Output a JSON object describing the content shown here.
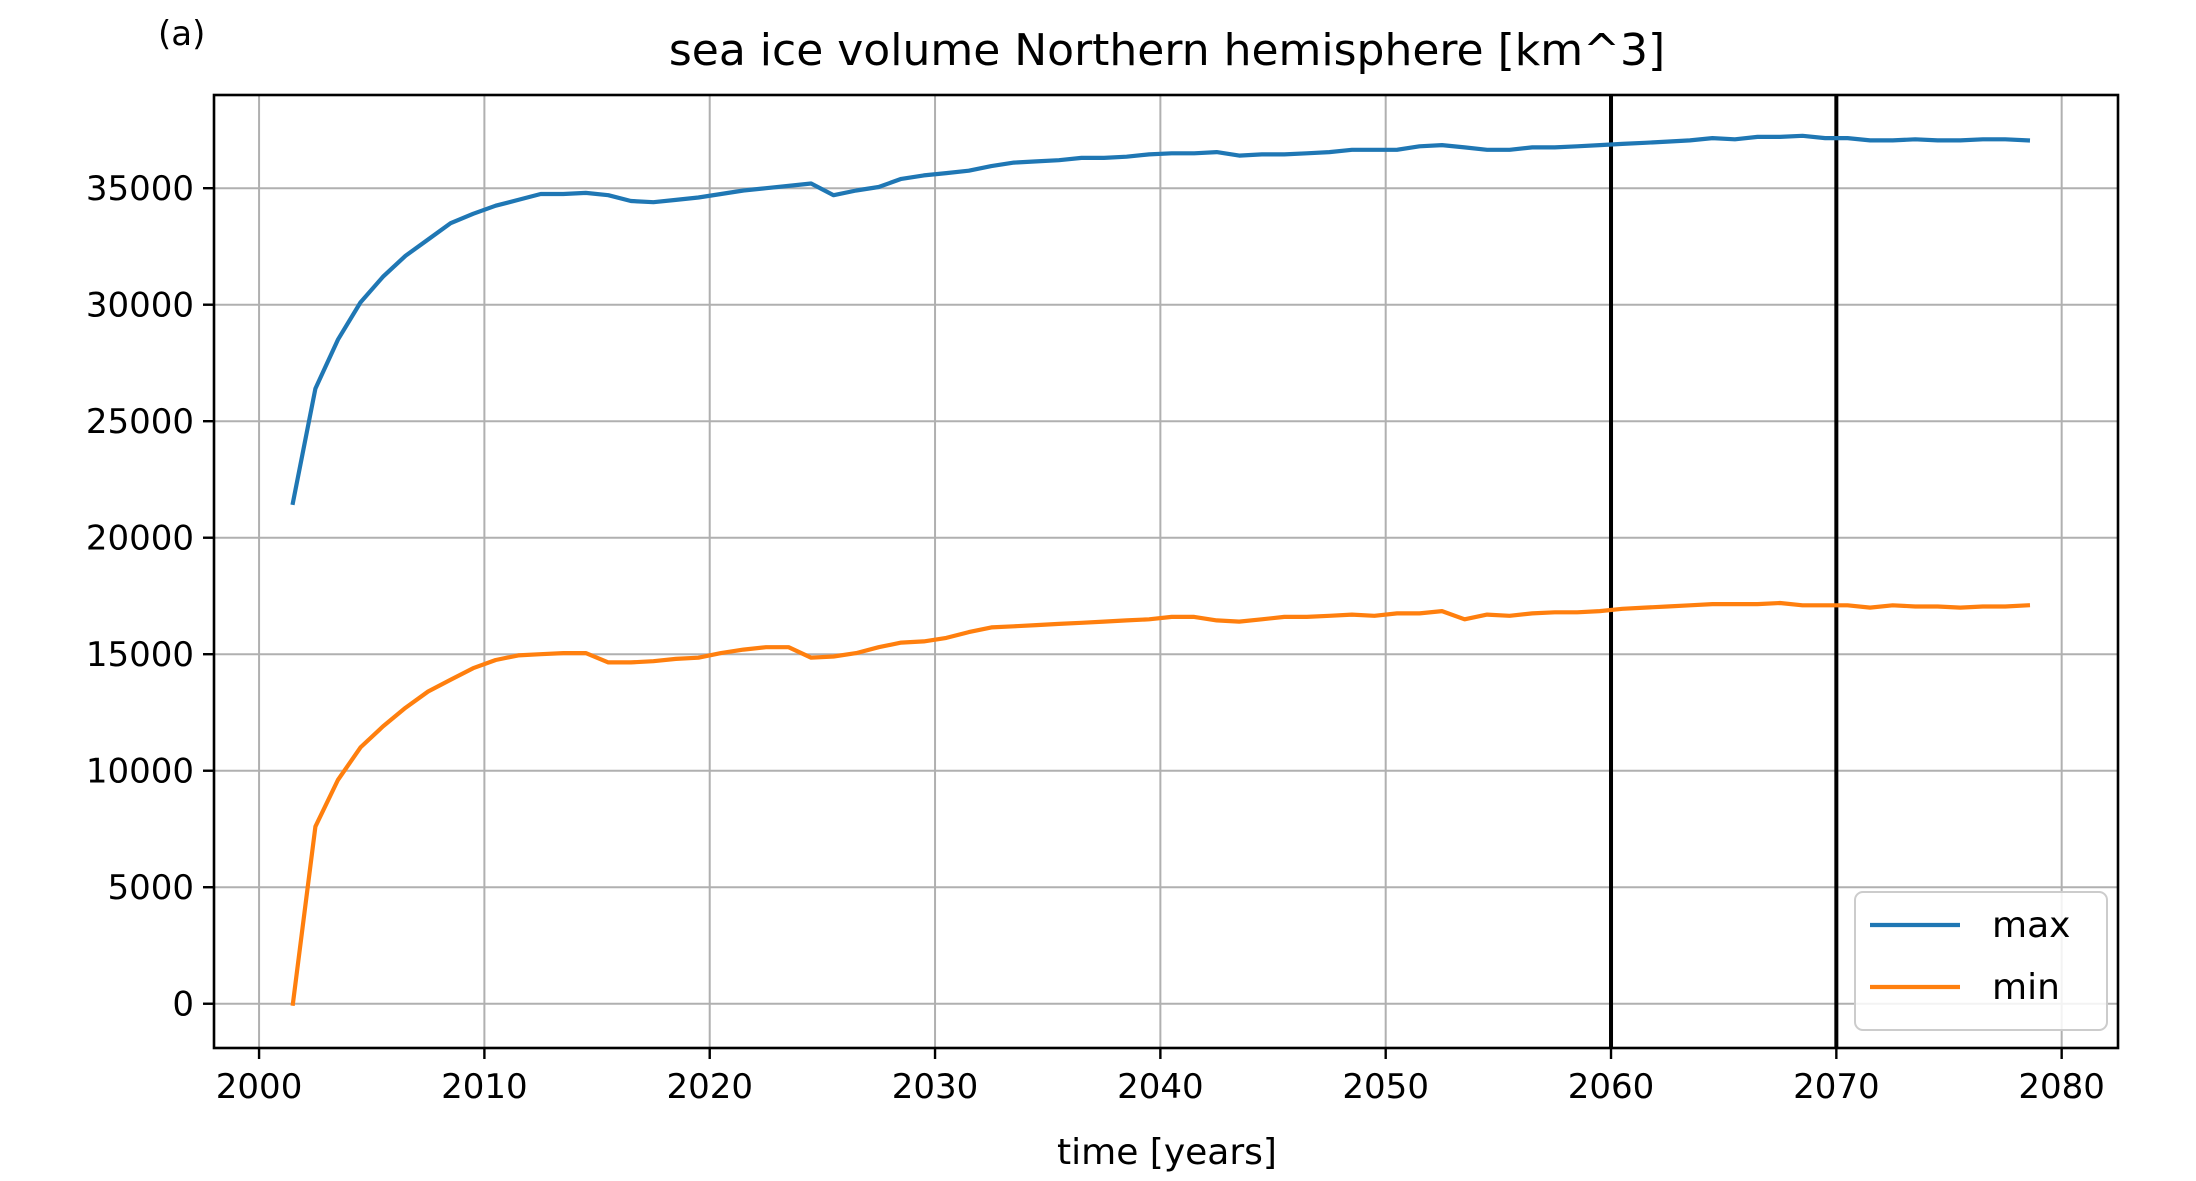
{
  "panel_label": "(a)",
  "chart_data": {
    "type": "line",
    "title": "sea ice volume Northern hemisphere [km^3]",
    "xlabel": "time [years]",
    "ylabel": "",
    "xlim": [
      1998,
      2082.5
    ],
    "ylim": [
      -1900,
      39000
    ],
    "xticks": [
      2000,
      2010,
      2020,
      2030,
      2040,
      2050,
      2060,
      2070,
      2080
    ],
    "yticks": [
      0,
      5000,
      10000,
      15000,
      20000,
      25000,
      30000,
      35000
    ],
    "grid": true,
    "legend_position": "lower right",
    "vlines": [
      2060,
      2070
    ],
    "vline_color": "#000000",
    "series": [
      {
        "name": "max",
        "color": "#1f77b4",
        "points": [
          [
            2001.5,
            21500
          ],
          [
            2002.5,
            26400
          ],
          [
            2003.5,
            28500
          ],
          [
            2004.5,
            30100
          ],
          [
            2005.5,
            31200
          ],
          [
            2006.5,
            32100
          ],
          [
            2007.5,
            32800
          ],
          [
            2008.5,
            33500
          ],
          [
            2009.5,
            33900
          ],
          [
            2010.5,
            34250
          ],
          [
            2011.5,
            34500
          ],
          [
            2012.5,
            34750
          ],
          [
            2013.5,
            34750
          ],
          [
            2014.5,
            34800
          ],
          [
            2015.5,
            34700
          ],
          [
            2016.5,
            34450
          ],
          [
            2017.5,
            34400
          ],
          [
            2018.5,
            34500
          ],
          [
            2019.5,
            34600
          ],
          [
            2020.5,
            34750
          ],
          [
            2021.5,
            34900
          ],
          [
            2022.5,
            35000
          ],
          [
            2023.5,
            35100
          ],
          [
            2024.5,
            35200
          ],
          [
            2025.5,
            34700
          ],
          [
            2026.5,
            34900
          ],
          [
            2027.5,
            35050
          ],
          [
            2028.5,
            35400
          ],
          [
            2029.5,
            35550
          ],
          [
            2030.5,
            35650
          ],
          [
            2031.5,
            35750
          ],
          [
            2032.5,
            35950
          ],
          [
            2033.5,
            36100
          ],
          [
            2034.5,
            36150
          ],
          [
            2035.5,
            36200
          ],
          [
            2036.5,
            36300
          ],
          [
            2037.5,
            36300
          ],
          [
            2038.5,
            36350
          ],
          [
            2039.5,
            36450
          ],
          [
            2040.5,
            36500
          ],
          [
            2041.5,
            36500
          ],
          [
            2042.5,
            36550
          ],
          [
            2043.5,
            36400
          ],
          [
            2044.5,
            36450
          ],
          [
            2045.5,
            36450
          ],
          [
            2046.5,
            36500
          ],
          [
            2047.5,
            36550
          ],
          [
            2048.5,
            36650
          ],
          [
            2049.5,
            36650
          ],
          [
            2050.5,
            36650
          ],
          [
            2051.5,
            36800
          ],
          [
            2052.5,
            36850
          ],
          [
            2053.5,
            36750
          ],
          [
            2054.5,
            36650
          ],
          [
            2055.5,
            36650
          ],
          [
            2056.5,
            36750
          ],
          [
            2057.5,
            36750
          ],
          [
            2058.5,
            36800
          ],
          [
            2059.5,
            36850
          ],
          [
            2060.5,
            36900
          ],
          [
            2061.5,
            36950
          ],
          [
            2062.5,
            37000
          ],
          [
            2063.5,
            37050
          ],
          [
            2064.5,
            37150
          ],
          [
            2065.5,
            37100
          ],
          [
            2066.5,
            37200
          ],
          [
            2067.5,
            37200
          ],
          [
            2068.5,
            37250
          ],
          [
            2069.5,
            37150
          ],
          [
            2070.5,
            37150
          ],
          [
            2071.5,
            37050
          ],
          [
            2072.5,
            37050
          ],
          [
            2073.5,
            37100
          ],
          [
            2074.5,
            37050
          ],
          [
            2075.5,
            37050
          ],
          [
            2076.5,
            37100
          ],
          [
            2077.5,
            37100
          ],
          [
            2078.5,
            37050
          ]
        ]
      },
      {
        "name": "min",
        "color": "#ff7f0e",
        "points": [
          [
            2001.5,
            0
          ],
          [
            2002.5,
            7600
          ],
          [
            2003.5,
            9600
          ],
          [
            2004.5,
            11000
          ],
          [
            2005.5,
            11900
          ],
          [
            2006.5,
            12700
          ],
          [
            2007.5,
            13400
          ],
          [
            2008.5,
            13900
          ],
          [
            2009.5,
            14400
          ],
          [
            2010.5,
            14750
          ],
          [
            2011.5,
            14950
          ],
          [
            2012.5,
            15000
          ],
          [
            2013.5,
            15050
          ],
          [
            2014.5,
            15050
          ],
          [
            2015.5,
            14650
          ],
          [
            2016.5,
            14650
          ],
          [
            2017.5,
            14700
          ],
          [
            2018.5,
            14800
          ],
          [
            2019.5,
            14850
          ],
          [
            2020.5,
            15050
          ],
          [
            2021.5,
            15200
          ],
          [
            2022.5,
            15300
          ],
          [
            2023.5,
            15300
          ],
          [
            2024.5,
            14850
          ],
          [
            2025.5,
            14900
          ],
          [
            2026.5,
            15050
          ],
          [
            2027.5,
            15300
          ],
          [
            2028.5,
            15500
          ],
          [
            2029.5,
            15550
          ],
          [
            2030.5,
            15700
          ],
          [
            2031.5,
            15950
          ],
          [
            2032.5,
            16150
          ],
          [
            2033.5,
            16200
          ],
          [
            2034.5,
            16250
          ],
          [
            2035.5,
            16300
          ],
          [
            2036.5,
            16350
          ],
          [
            2037.5,
            16400
          ],
          [
            2038.5,
            16450
          ],
          [
            2039.5,
            16500
          ],
          [
            2040.5,
            16600
          ],
          [
            2041.5,
            16600
          ],
          [
            2042.5,
            16450
          ],
          [
            2043.5,
            16400
          ],
          [
            2044.5,
            16500
          ],
          [
            2045.5,
            16600
          ],
          [
            2046.5,
            16600
          ],
          [
            2047.5,
            16650
          ],
          [
            2048.5,
            16700
          ],
          [
            2049.5,
            16650
          ],
          [
            2050.5,
            16750
          ],
          [
            2051.5,
            16750
          ],
          [
            2052.5,
            16850
          ],
          [
            2053.5,
            16500
          ],
          [
            2054.5,
            16700
          ],
          [
            2055.5,
            16650
          ],
          [
            2056.5,
            16750
          ],
          [
            2057.5,
            16800
          ],
          [
            2058.5,
            16800
          ],
          [
            2059.5,
            16850
          ],
          [
            2060.5,
            16950
          ],
          [
            2061.5,
            17000
          ],
          [
            2062.5,
            17050
          ],
          [
            2063.5,
            17100
          ],
          [
            2064.5,
            17150
          ],
          [
            2065.5,
            17150
          ],
          [
            2066.5,
            17150
          ],
          [
            2067.5,
            17200
          ],
          [
            2068.5,
            17100
          ],
          [
            2069.5,
            17100
          ],
          [
            2070.5,
            17100
          ],
          [
            2071.5,
            17000
          ],
          [
            2072.5,
            17100
          ],
          [
            2073.5,
            17050
          ],
          [
            2074.5,
            17050
          ],
          [
            2075.5,
            17000
          ],
          [
            2076.5,
            17050
          ],
          [
            2077.5,
            17050
          ],
          [
            2078.5,
            17100
          ]
        ]
      }
    ]
  }
}
